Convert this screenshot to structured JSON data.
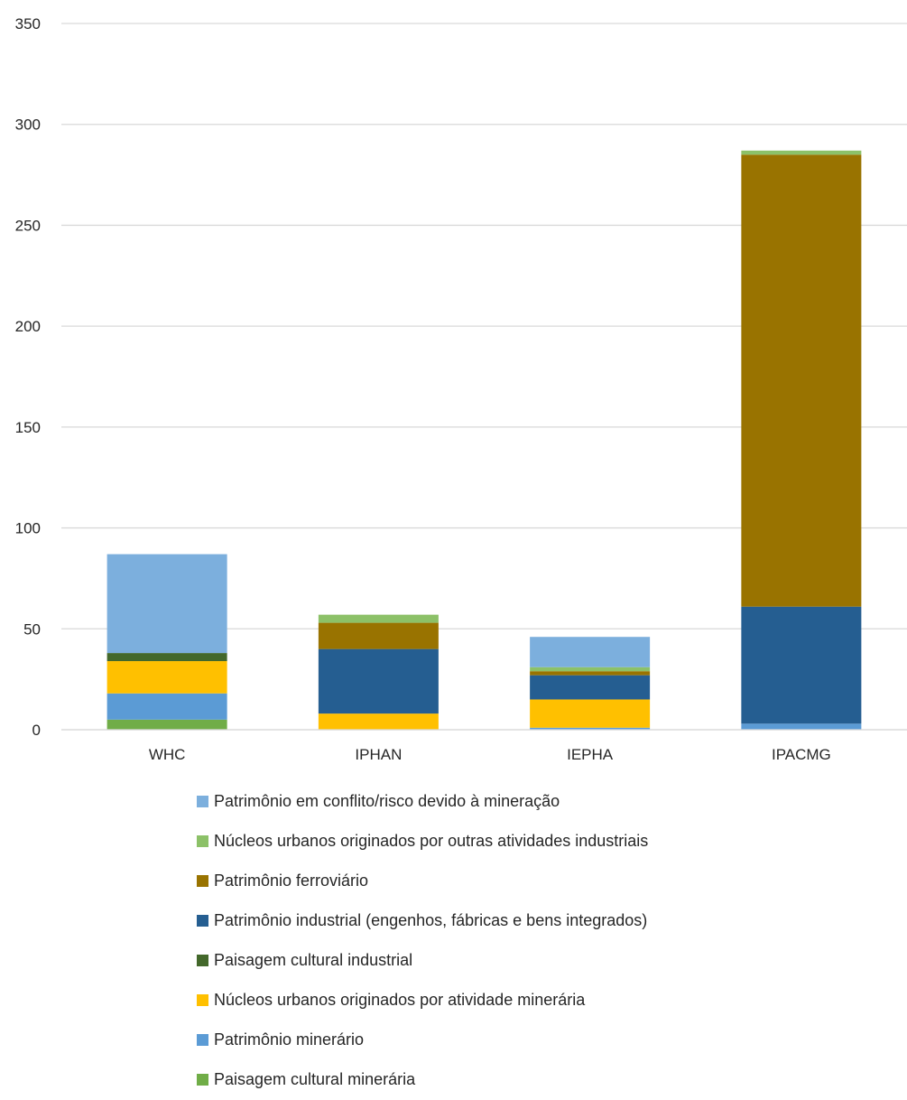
{
  "chart_data": {
    "type": "bar",
    "stacked": true,
    "categories": [
      "WHC",
      "IPHAN",
      "IEPHA",
      "IPACMG"
    ],
    "ylim": [
      0,
      350
    ],
    "yticks": [
      0,
      50,
      100,
      150,
      200,
      250,
      300,
      350
    ],
    "grid": true,
    "legend_position": "bottom",
    "series": [
      {
        "name": "Paisagem cultural minerária",
        "color": "#70AD47",
        "values": [
          5,
          0,
          0,
          0
        ]
      },
      {
        "name": "Patrimônio minerário",
        "color": "#5B9BD5",
        "values": [
          13,
          0,
          1,
          3
        ]
      },
      {
        "name": "Núcleos urbanos originados por atividade minerária",
        "color": "#FFC000",
        "values": [
          16,
          8,
          14,
          0
        ]
      },
      {
        "name": "Paisagem cultural industrial",
        "color": "#43682B",
        "values": [
          4,
          0,
          0,
          0
        ]
      },
      {
        "name": "Patrimônio industrial (engenhos, fábricas e bens integrados)",
        "color": "#255E91",
        "values": [
          0,
          32,
          12,
          58
        ]
      },
      {
        "name": "Patrimônio ferroviário",
        "color": "#997300",
        "values": [
          0,
          13,
          2,
          224
        ]
      },
      {
        "name": "Núcleos urbanos originados por outras atividades industriais",
        "color": "#8CC168",
        "values": [
          0,
          4,
          2,
          2
        ]
      },
      {
        "name": "Patrimônio em conflito/risco devido à mineração",
        "color": "#7CAFDD",
        "values": [
          49,
          0,
          15,
          0
        ]
      }
    ]
  }
}
